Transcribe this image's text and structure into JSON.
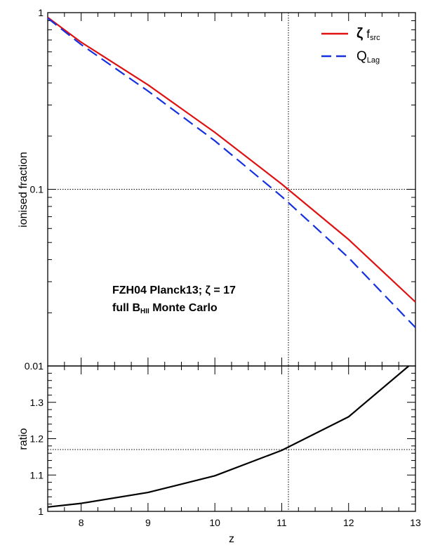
{
  "chart_data": [
    {
      "type": "line",
      "panel": "top",
      "ylabel": "ionised fraction",
      "yscale": "log",
      "xlim": [
        7.5,
        13
      ],
      "ylim": [
        0.01,
        1
      ],
      "ytick_labels": [
        "0.01",
        "0.1",
        "1"
      ],
      "legend_position": "top-right",
      "series": [
        {
          "name": "ζ f_src",
          "legend_symbol": "ζ",
          "legend_main": "f",
          "legend_sub": "src",
          "color": "#e01010",
          "style": "solid",
          "x": [
            7.5,
            8,
            9,
            10,
            11,
            12,
            13
          ],
          "y": [
            0.94,
            0.68,
            0.39,
            0.21,
            0.107,
            0.052,
            0.023
          ]
        },
        {
          "name": "Q_Lag",
          "legend_main": "Q",
          "legend_sub": "Lag",
          "color": "#1430e0",
          "style": "dashed",
          "x": [
            7.5,
            8,
            9,
            10,
            11,
            12,
            13
          ],
          "y": [
            0.93,
            0.66,
            0.36,
            0.188,
            0.091,
            0.041,
            0.0165
          ]
        }
      ],
      "reference_lines": {
        "x": 11.1,
        "y": 0.1
      },
      "annotation": {
        "line1": "FZH04  Planck13; ζ = 17",
        "line2_pre": "full B",
        "line2_sub": "HII",
        "line2_post": " Monte Carlo"
      }
    },
    {
      "type": "line",
      "panel": "bottom",
      "xlabel": "z",
      "ylabel": "ratio",
      "xlim": [
        7.5,
        13
      ],
      "ylim": [
        1,
        1.4
      ],
      "xticks": [
        8,
        9,
        10,
        11,
        12,
        13
      ],
      "yticks": [
        1,
        1.1,
        1.2,
        1.3
      ],
      "ytick_labels": [
        "1",
        "1.1",
        "1.2",
        "1.3"
      ],
      "series": [
        {
          "name": "ratio",
          "color": "#000000",
          "style": "solid",
          "x": [
            7.5,
            8,
            9,
            10,
            11,
            12,
            12.9
          ],
          "y": [
            1.012,
            1.022,
            1.052,
            1.098,
            1.168,
            1.26,
            1.4
          ]
        }
      ],
      "reference_lines": {
        "x": 11.1,
        "y": 1.17
      }
    }
  ]
}
